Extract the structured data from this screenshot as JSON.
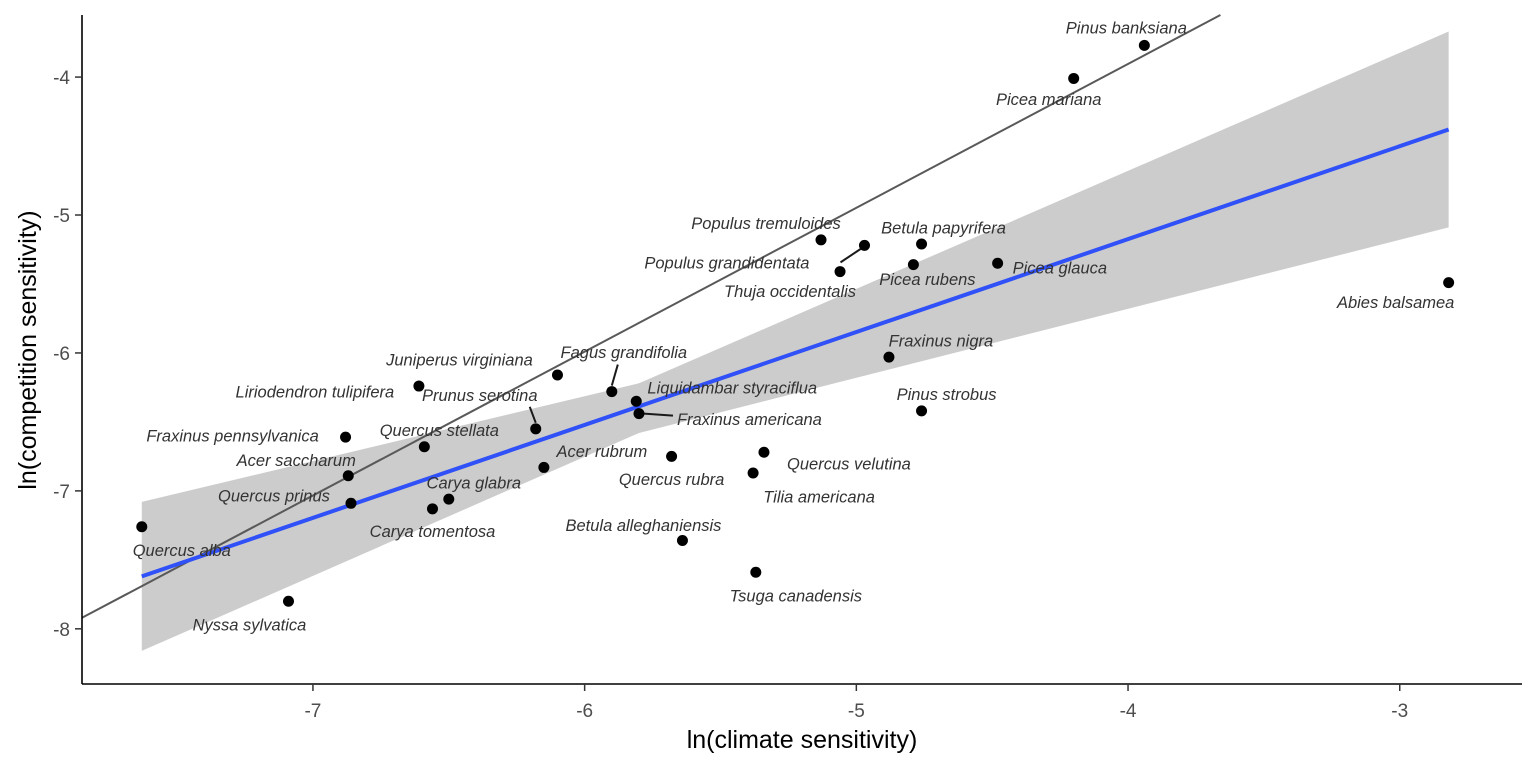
{
  "chart_data": {
    "type": "scatter",
    "title": "",
    "xlabel": "ln(climate sensitivity)",
    "ylabel": "ln(competition sensitivity)",
    "xlim": [
      -7.85,
      -2.55
    ],
    "ylim": [
      -8.4,
      -3.55
    ],
    "xticks": [
      -7,
      -6,
      -5,
      -4,
      -3
    ],
    "yticks": [
      -8,
      -7,
      -6,
      -5,
      -4
    ],
    "grid": false,
    "legend": "none",
    "colors": {
      "points": "#000000",
      "fit": "#3050f8",
      "ribbon": "#cccccc",
      "reference": "#595959",
      "axis": "#000000"
    },
    "fit_line": {
      "x": [
        -7.63,
        -2.82
      ],
      "y": [
        -7.62,
        -4.38
      ]
    },
    "confidence_band": {
      "x": [
        -7.63,
        -5.8,
        -2.82
      ],
      "upper": [
        -7.08,
        -6.22,
        -3.67
      ],
      "lower": [
        -8.16,
        -6.58,
        -5.09
      ]
    },
    "reference_line": {
      "x": [
        -7.85,
        -3.66
      ],
      "y": [
        -7.92,
        -3.55
      ]
    },
    "points": [
      {
        "name": "Pinus banksiana",
        "x": -3.94,
        "y": -3.77
      },
      {
        "name": "Picea mariana",
        "x": -4.2,
        "y": -4.01
      },
      {
        "name": "Populus tremuloides",
        "x": -5.13,
        "y": -5.18
      },
      {
        "name": "Populus grandidentata",
        "x": -4.97,
        "y": -5.22
      },
      {
        "name": "Betula papyrifera",
        "x": -4.76,
        "y": -5.21
      },
      {
        "name": "Thuja occidentalis",
        "x": -5.06,
        "y": -5.41
      },
      {
        "name": "Picea rubens",
        "x": -4.79,
        "y": -5.36
      },
      {
        "name": "Picea glauca",
        "x": -4.48,
        "y": -5.35
      },
      {
        "name": "Abies balsamea",
        "x": -2.82,
        "y": -5.49
      },
      {
        "name": "Fraxinus nigra",
        "x": -4.88,
        "y": -6.03
      },
      {
        "name": "Pinus strobus",
        "x": -4.76,
        "y": -6.42
      },
      {
        "name": "Juniperus virginiana",
        "x": -6.1,
        "y": -6.16
      },
      {
        "name": "Fagus grandifolia",
        "x": -5.9,
        "y": -6.28
      },
      {
        "name": "Liriodendron tulipifera",
        "x": -6.61,
        "y": -6.24
      },
      {
        "name": "Liquidambar styraciflua",
        "x": -5.81,
        "y": -6.35
      },
      {
        "name": "Prunus serotina",
        "x": -6.18,
        "y": -6.55
      },
      {
        "name": "Fraxinus americana",
        "x": -5.8,
        "y": -6.44
      },
      {
        "name": "Fraxinus pennsylvanica",
        "x": -6.88,
        "y": -6.61
      },
      {
        "name": "Quercus stellata",
        "x": -6.59,
        "y": -6.68
      },
      {
        "name": "Acer rubrum",
        "x": -6.15,
        "y": -6.83
      },
      {
        "name": "Quercus rubra",
        "x": -5.68,
        "y": -6.75
      },
      {
        "name": "Quercus velutina",
        "x": -5.34,
        "y": -6.72
      },
      {
        "name": "Tilia americana",
        "x": -5.38,
        "y": -6.87
      },
      {
        "name": "Acer saccharum",
        "x": -6.87,
        "y": -6.89
      },
      {
        "name": "Quercus prinus",
        "x": -6.86,
        "y": -7.09
      },
      {
        "name": "Carya glabra",
        "x": -6.5,
        "y": -7.06
      },
      {
        "name": "Carya tomentosa",
        "x": -6.56,
        "y": -7.13
      },
      {
        "name": "Betula alleghaniensis",
        "x": -5.64,
        "y": -7.36
      },
      {
        "name": "Quercus alba",
        "x": -7.63,
        "y": -7.26
      },
      {
        "name": "Nyssa sylvatica",
        "x": -7.09,
        "y": -7.8
      },
      {
        "name": "Tsuga canadensis",
        "x": -5.37,
        "y": -7.59
      }
    ]
  }
}
